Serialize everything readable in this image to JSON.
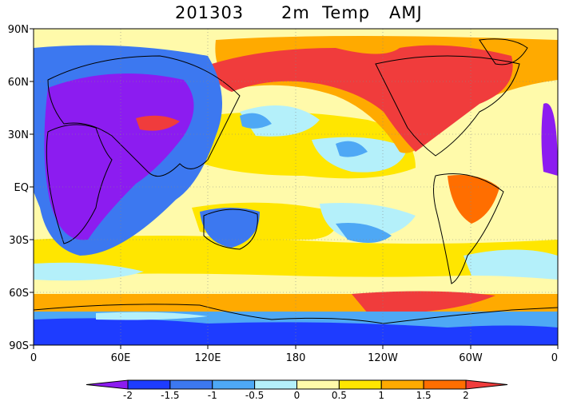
{
  "title": {
    "date": "201303",
    "variable": "2m  Temp",
    "season": "AMJ"
  },
  "map": {
    "projection": "equirectangular",
    "lon_range": [
      0,
      360
    ],
    "lat_range": [
      -90,
      90
    ],
    "lat_labels": [
      "90N",
      "60N",
      "30N",
      "EQ",
      "30S",
      "60S",
      "90S"
    ],
    "lon_labels": [
      "0",
      "60E",
      "120E",
      "180",
      "120W",
      "60W",
      "0"
    ],
    "lon_values": [
      0,
      60,
      120,
      180,
      240,
      300,
      360
    ],
    "lat_values": [
      90,
      60,
      30,
      0,
      -30,
      -60,
      -90
    ],
    "gridlines": "dotted at 60° longitude, 30° latitude"
  },
  "colorbar": {
    "levels": [
      "-2",
      "-1.5",
      "-1",
      "-0.5",
      "0",
      "0.5",
      "1",
      "1.5",
      "2"
    ],
    "colors": [
      "#8c1cf0",
      "#1e3cff",
      "#3c78f0",
      "#4ea8f5",
      "#b4f0fa",
      "#fffaaa",
      "#ffe600",
      "#ffaa00",
      "#ff6e00",
      "#f03c3c"
    ],
    "extend": "both"
  },
  "colors": {
    "lt_m2": "#8c1cf0",
    "m2_m15": "#1e3cff",
    "m15_m1": "#3c78f0",
    "m1_m05": "#4ea8f5",
    "m05_0": "#b4f0fa",
    "z_05": "#fffaaa",
    "p05_1": "#ffe600",
    "p1_15": "#ffaa00",
    "p15_2": "#ff6e00",
    "gt_2": "#f03c3c"
  }
}
